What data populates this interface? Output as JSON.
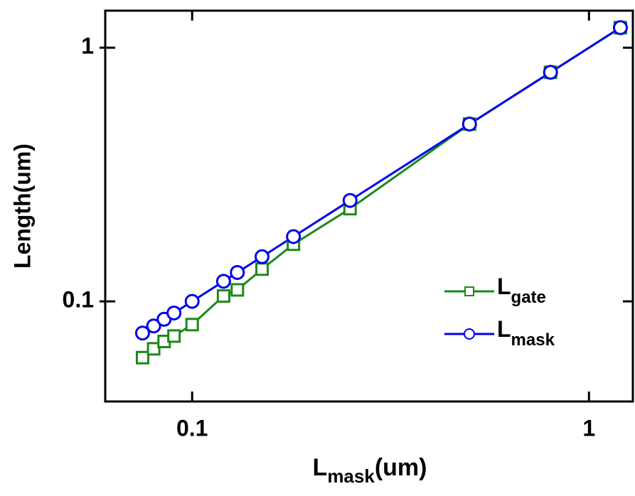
{
  "chart_data": {
    "type": "line",
    "xlabel": {
      "base": "L",
      "sub": "mask",
      "suffix": "(um)"
    },
    "ylabel": "Length(um)",
    "x": [
      0.075,
      0.08,
      0.085,
      0.09,
      0.1,
      0.12,
      0.13,
      0.15,
      0.18,
      0.25,
      0.5,
      0.8,
      1.2
    ],
    "series": [
      {
        "name": {
          "base": "L",
          "sub": "gate"
        },
        "color": "#1a8a1a",
        "marker": "square",
        "values": [
          0.06,
          0.065,
          0.0695,
          0.073,
          0.081,
          0.105,
          0.111,
          0.134,
          0.168,
          0.232,
          0.5,
          0.8,
          1.2
        ]
      },
      {
        "name": {
          "base": "L",
          "sub": "mask"
        },
        "color": "#0000ee",
        "marker": "circle",
        "values": [
          0.075,
          0.08,
          0.085,
          0.09,
          0.1,
          0.12,
          0.13,
          0.15,
          0.18,
          0.25,
          0.5,
          0.8,
          1.2
        ]
      }
    ],
    "xscale": "log",
    "yscale": "log",
    "xlim": [
      0.0604,
      1.29
    ],
    "ylim": [
      0.0403,
      1.4
    ],
    "xticks": [
      0.1,
      1
    ],
    "yticks": [
      0.1,
      1
    ],
    "legend": "lower right"
  }
}
